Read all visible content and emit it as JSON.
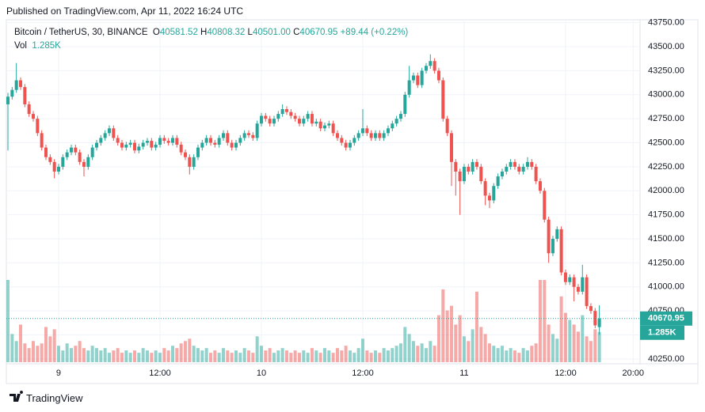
{
  "published": "Published on TradingView.com, Apr 11, 2022 16:24 UTC",
  "brand": "TradingView",
  "chart_data": {
    "type": "candlestick",
    "title": "Bitcoin / TetherUS, 30, BINANCE",
    "legend": {
      "o_label": "O",
      "o": "40581.52",
      "h_label": "H",
      "h": "40808.32",
      "l_label": "L",
      "l": "40501.00",
      "c_label": "C",
      "c": "40670.95",
      "change": "+89.44 (+0.22%)"
    },
    "volume_label": "Vol",
    "volume_value_label": "1.285K",
    "last_price_label": "40670.95",
    "up_color": "#26a69a",
    "down_color": "#ef5350",
    "grid": true,
    "ylim": [
      40200,
      43780
    ],
    "yticks": [
      {
        "value": 43750,
        "label": "43750.00"
      },
      {
        "value": 43500,
        "label": "43500.00"
      },
      {
        "value": 43250,
        "label": "43250.00"
      },
      {
        "value": 43000,
        "label": "43000.00"
      },
      {
        "value": 42750,
        "label": "42750.00"
      },
      {
        "value": 42500,
        "label": "42500.00"
      },
      {
        "value": 42250,
        "label": "42250.00"
      },
      {
        "value": 42000,
        "label": "42000.00"
      },
      {
        "value": 41750,
        "label": "41750.00"
      },
      {
        "value": 41500,
        "label": "41500.00"
      },
      {
        "value": 41250,
        "label": "41250.00"
      },
      {
        "value": 41000,
        "label": "41000.00"
      },
      {
        "value": 40750,
        "label": "40750.00"
      },
      {
        "value": 40500,
        "label": "40500.00"
      },
      {
        "value": 40250,
        "label": "40250.00"
      }
    ],
    "xticks": [
      {
        "value": 12,
        "label": "9"
      },
      {
        "value": 36,
        "label": "12:00"
      },
      {
        "value": 60,
        "label": "10"
      },
      {
        "value": 84,
        "label": "12:00"
      },
      {
        "value": 108,
        "label": "11"
      },
      {
        "value": 132,
        "label": "12:00"
      },
      {
        "value": 148,
        "label": "20:00"
      }
    ],
    "open": [
      42900,
      42980,
      43050,
      43150,
      43080,
      42900,
      42800,
      42750,
      42600,
      42450,
      42350,
      42300,
      42200,
      42250,
      42350,
      42400,
      42450,
      42400,
      42300,
      42250,
      42350,
      42450,
      42500,
      42550,
      42600,
      42650,
      42550,
      42500,
      42450,
      42480,
      42500,
      42420,
      42460,
      42500,
      42520,
      42450,
      42480,
      42550,
      42520,
      42500,
      42550,
      42480,
      42400,
      42350,
      42250,
      42350,
      42450,
      42500,
      42550,
      42500,
      42480,
      42550,
      42600,
      42500,
      42450,
      42500,
      42550,
      42600,
      42580,
      42550,
      42700,
      42780,
      42750,
      42700,
      42750,
      42800,
      42850,
      42820,
      42780,
      42750,
      42700,
      42750,
      42800,
      42700,
      42720,
      42650,
      42680,
      42700,
      42600,
      42550,
      42500,
      42450,
      42500,
      42550,
      42600,
      42650,
      42600,
      42550,
      42600,
      42550,
      42600,
      42650,
      42700,
      42750,
      42800,
      43000,
      43150,
      43200,
      43100,
      43250,
      43300,
      43350,
      43250,
      43150,
      42750,
      42600,
      42300,
      42200,
      42100,
      42250,
      42200,
      42300,
      42250,
      42100,
      41950,
      41900,
      42050,
      42150,
      42200,
      42250,
      42300,
      42250,
      42200,
      42250,
      42300,
      42250,
      42100,
      42000,
      41700,
      41350,
      41500,
      41600,
      41150,
      41050,
      41100,
      41000,
      40950,
      41100,
      40800,
      40750,
      40581.52
    ],
    "high": [
      43020,
      43080,
      43330,
      43180,
      43110,
      42930,
      42830,
      42780,
      42630,
      42480,
      42380,
      42330,
      42280,
      42380,
      42430,
      42480,
      42480,
      42430,
      42330,
      42380,
      42480,
      42530,
      42580,
      42630,
      42680,
      42680,
      42580,
      42530,
      42510,
      42530,
      42530,
      42490,
      42530,
      42550,
      42550,
      42510,
      42580,
      42580,
      42550,
      42580,
      42580,
      42510,
      42430,
      42380,
      42380,
      42480,
      42530,
      42580,
      42580,
      42530,
      42580,
      42630,
      42630,
      42530,
      42530,
      42580,
      42630,
      42630,
      42610,
      42730,
      42810,
      42810,
      42780,
      42780,
      42830,
      42900,
      42880,
      42850,
      42810,
      42780,
      42780,
      42830,
      42830,
      42750,
      42750,
      42710,
      42730,
      42730,
      42630,
      42580,
      42530,
      42530,
      42580,
      42630,
      42850,
      42680,
      42630,
      42630,
      42630,
      42630,
      42680,
      42730,
      42780,
      42830,
      43030,
      43300,
      43230,
      43230,
      43280,
      43330,
      43420,
      43380,
      43280,
      43180,
      42780,
      42630,
      42330,
      42230,
      42280,
      42280,
      42330,
      42330,
      42280,
      42130,
      41980,
      42080,
      42180,
      42230,
      42280,
      42330,
      42330,
      42280,
      42280,
      42350,
      42330,
      42280,
      42130,
      42030,
      41730,
      41530,
      41630,
      41630,
      41180,
      41130,
      41130,
      41030,
      41230,
      41130,
      40830,
      40780,
      40808.32
    ],
    "low": [
      42420,
      42950,
      43020,
      43050,
      42870,
      42770,
      42720,
      42570,
      42420,
      42320,
      42270,
      42130,
      42170,
      42220,
      42320,
      42370,
      42370,
      42270,
      42150,
      42220,
      42320,
      42420,
      42470,
      42520,
      42570,
      42520,
      42470,
      42420,
      42420,
      42450,
      42390,
      42390,
      42430,
      42470,
      42420,
      42420,
      42450,
      42490,
      42470,
      42470,
      42450,
      42370,
      42320,
      42170,
      42220,
      42320,
      42420,
      42470,
      42470,
      42450,
      42450,
      42520,
      42470,
      42420,
      42420,
      42470,
      42520,
      42550,
      42520,
      42520,
      42670,
      42720,
      42670,
      42670,
      42720,
      42770,
      42790,
      42750,
      42720,
      42670,
      42670,
      42720,
      42670,
      42670,
      42620,
      42620,
      42650,
      42570,
      42520,
      42470,
      42420,
      42420,
      42470,
      42520,
      42570,
      42570,
      42520,
      42520,
      42520,
      42520,
      42570,
      42620,
      42670,
      42720,
      42770,
      42970,
      43120,
      43070,
      43070,
      43220,
      43270,
      43220,
      43120,
      42720,
      42570,
      42050,
      41950,
      41750,
      42070,
      42170,
      42170,
      42220,
      42070,
      41850,
      41820,
      41870,
      42020,
      42120,
      42170,
      42220,
      42220,
      42170,
      42170,
      42220,
      42220,
      42070,
      41970,
      41670,
      41250,
      41320,
      41470,
      41120,
      41020,
      41020,
      40850,
      40920,
      40920,
      40770,
      40720,
      40570,
      40501
    ],
    "close": [
      42980,
      43050,
      43150,
      43080,
      42900,
      42800,
      42750,
      42600,
      42450,
      42350,
      42300,
      42200,
      42250,
      42350,
      42400,
      42450,
      42400,
      42300,
      42250,
      42350,
      42450,
      42500,
      42550,
      42600,
      42650,
      42550,
      42500,
      42450,
      42480,
      42500,
      42420,
      42460,
      42500,
      42520,
      42450,
      42480,
      42550,
      42520,
      42500,
      42550,
      42480,
      42400,
      42350,
      42250,
      42350,
      42450,
      42500,
      42550,
      42500,
      42480,
      42550,
      42600,
      42500,
      42450,
      42500,
      42550,
      42600,
      42580,
      42550,
      42700,
      42780,
      42750,
      42700,
      42750,
      42800,
      42850,
      42820,
      42780,
      42750,
      42700,
      42750,
      42800,
      42700,
      42720,
      42650,
      42680,
      42700,
      42600,
      42550,
      42500,
      42450,
      42500,
      42550,
      42600,
      42650,
      42600,
      42550,
      42600,
      42550,
      42600,
      42650,
      42700,
      42750,
      42800,
      43000,
      43150,
      43200,
      43100,
      43250,
      43300,
      43350,
      43250,
      43150,
      42750,
      42600,
      42300,
      42200,
      42100,
      42250,
      42200,
      42300,
      42250,
      42100,
      41950,
      41900,
      42050,
      42150,
      42200,
      42250,
      42300,
      42250,
      42200,
      42250,
      42300,
      42250,
      42100,
      42000,
      41700,
      41350,
      41500,
      41600,
      41150,
      41050,
      41100,
      41000,
      40950,
      41100,
      40800,
      40750,
      40600,
      40670.95
    ],
    "volume": [
      3.5,
      1.2,
      0.9,
      1.6,
      0.8,
      0.6,
      0.9,
      0.7,
      0.8,
      1.5,
      1.1,
      1.4,
      0.7,
      0.5,
      0.8,
      0.6,
      0.7,
      0.9,
      0.6,
      0.5,
      0.7,
      0.6,
      0.5,
      0.6,
      0.4,
      0.5,
      0.6,
      0.4,
      0.5,
      0.4,
      0.5,
      0.4,
      0.6,
      0.5,
      0.4,
      0.5,
      0.4,
      0.6,
      0.5,
      0.7,
      0.6,
      0.8,
      0.9,
      1.0,
      0.7,
      0.6,
      0.5,
      0.6,
      0.4,
      0.5,
      0.4,
      0.6,
      0.5,
      0.4,
      0.5,
      0.4,
      0.6,
      0.5,
      0.4,
      1.1,
      0.7,
      0.5,
      0.6,
      0.4,
      0.5,
      0.6,
      0.5,
      0.4,
      0.5,
      0.4,
      0.5,
      0.4,
      0.6,
      0.5,
      0.4,
      0.6,
      0.5,
      0.4,
      0.6,
      0.5,
      0.7,
      0.5,
      0.4,
      0.6,
      1.0,
      0.5,
      0.4,
      0.5,
      0.4,
      0.6,
      0.5,
      0.6,
      0.7,
      0.8,
      1.5,
      1.2,
      0.9,
      0.7,
      0.8,
      0.6,
      0.9,
      0.7,
      2.0,
      3.1,
      2.2,
      2.4,
      1.6,
      2.0,
      1.1,
      0.9,
      1.4,
      3.0,
      1.5,
      1.2,
      0.8,
      0.7,
      0.6,
      0.7,
      0.5,
      0.6,
      0.5,
      0.4,
      0.6,
      0.5,
      0.7,
      0.8,
      3.5,
      3.5,
      1.6,
      1.2,
      1.0,
      2.8,
      2.1,
      1.8,
      1.6,
      1.3,
      2.0,
      1.1,
      0.9,
      1.4,
      1.285
    ]
  }
}
